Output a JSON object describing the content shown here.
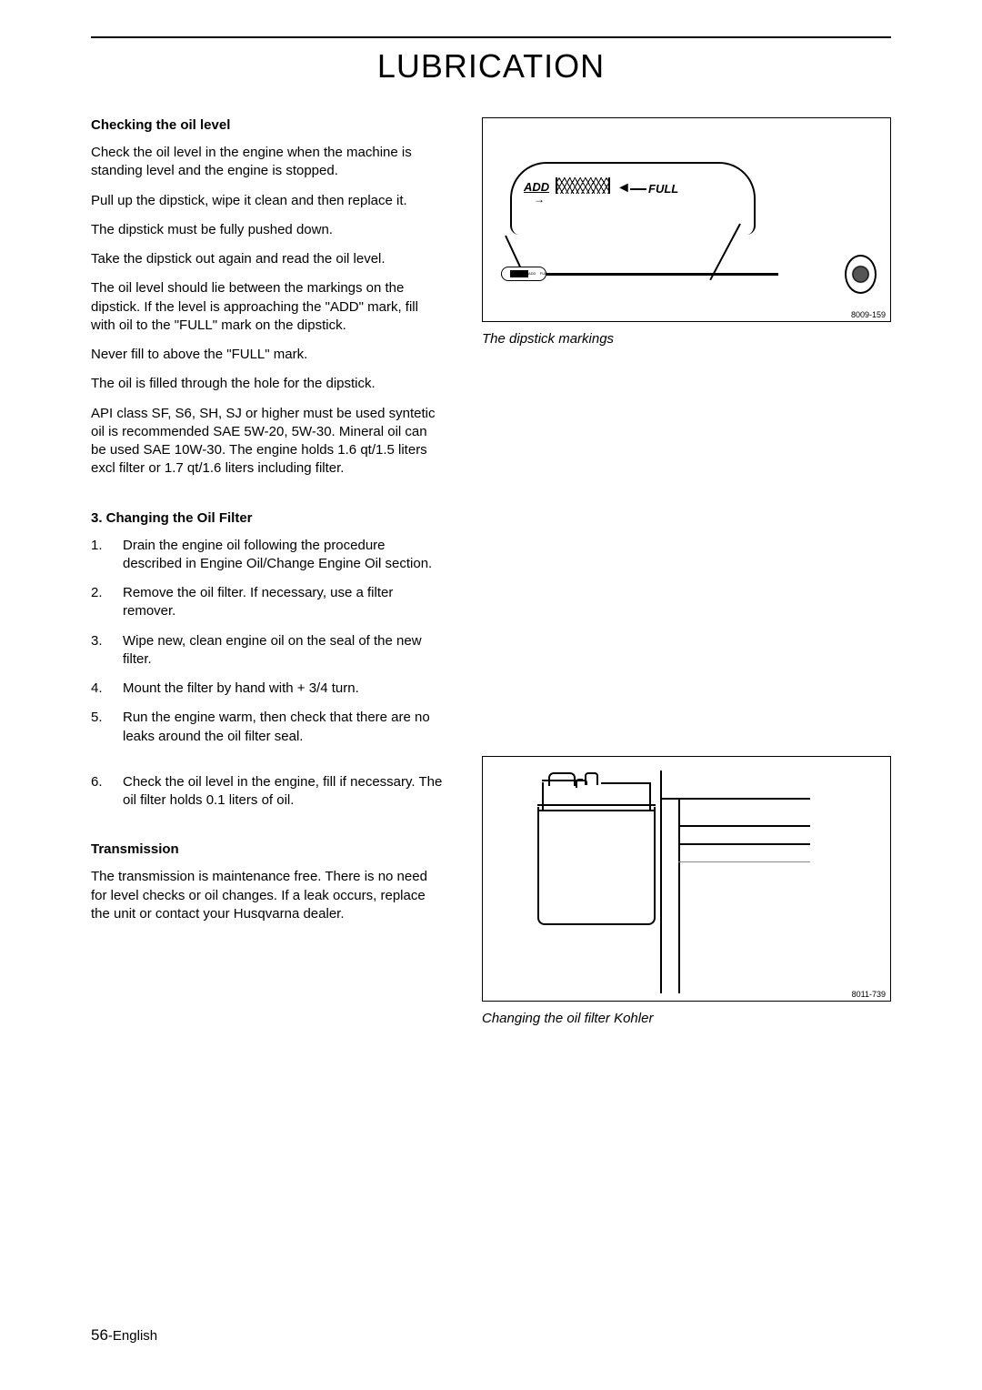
{
  "page_title": "LUBRICATION",
  "section1": {
    "heading": "Checking the oil level",
    "p1": "Check the oil level in the engine when the machine is standing level and the engine is stopped.",
    "p2": "Pull up the dipstick, wipe it clean and then replace it.",
    "p3": "The dipstick must be fully pushed down.",
    "p4": "Take the dipstick out again and read the oil level.",
    "p5": "The oil level should lie between the markings on the dipstick. If the level is approaching the \"ADD\" mark, fill with oil to the \"FULL\" mark on the dipstick.",
    "p6": "Never fill to above the \"FULL\" mark.",
    "p7": "The oil is filled through the hole for the dipstick.",
    "p8": "API class SF, S6, SH, SJ or higher must be used syntetic oil is recommended SAE 5W-20, 5W-30. Mineral oil can be used SAE 10W-30. The engine holds 1.6 qt/1.5 liters excl filter or 1.7 qt/1.6 liters including filter."
  },
  "section2": {
    "heading": "3. Changing the Oil Filter",
    "li1": "Drain the engine oil following the procedure described in Engine Oil/Change Engine Oil section.",
    "li2": "Remove the oil filter. If necessary, use a filter remover.",
    "li3": "Wipe new, clean engine oil on the seal of the new filter.",
    "li4": "Mount the filter by hand with + 3/4 turn.",
    "li5": "Run the engine warm, then check that there are no leaks around the oil filter seal.",
    "li6": "Check the oil level in the engine, fill if necessary. The oil filter holds 0.1 liters of oil."
  },
  "section3": {
    "heading": "Transmission",
    "p1": "The transmission is maintenance free. There is no need for level checks or oil changes. If a leak occurs, replace the unit or contact your Husqvarna dealer."
  },
  "figure1": {
    "add_label": "ADD",
    "full_label": "FULL",
    "number": "8009-159",
    "caption": "The dipstick markings"
  },
  "figure2": {
    "number": "8011-739",
    "caption": "Changing the oil filter Kohler"
  },
  "footer": {
    "page_num": "56",
    "lang": "-English"
  }
}
